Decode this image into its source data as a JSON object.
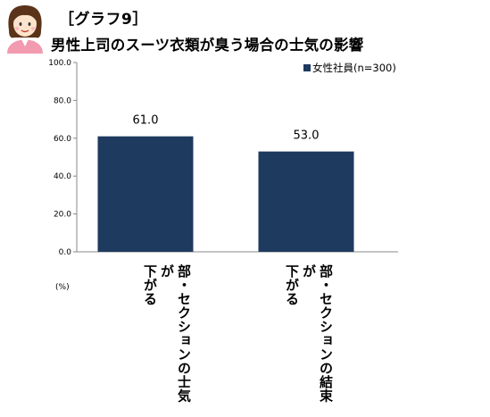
{
  "heading": {
    "label": "［グラフ9］",
    "title": "男性上司のスーツ衣類が臭う場合の士気の影響"
  },
  "chart_data": {
    "type": "bar",
    "categories": [
      "部・セクションの士気が下がる",
      "部・セクションの結束が下がる"
    ],
    "category_lines": [
      [
        "部・セクションの士気が",
        "下がる"
      ],
      [
        "部・セクションの結束が",
        "下がる"
      ]
    ],
    "series": [
      {
        "name": "女性社員(n=300)",
        "values": [
          61.0,
          53.0
        ],
        "color": "#1f3a5f"
      }
    ],
    "value_labels": [
      "61.0",
      "53.0"
    ],
    "ylim": [
      0,
      100
    ],
    "yticks": [
      "0.0",
      "20.0",
      "40.0",
      "60.0",
      "80.0",
      "100.0"
    ],
    "ylabel": "(%)",
    "legend_position": "top-right",
    "grid": false
  }
}
